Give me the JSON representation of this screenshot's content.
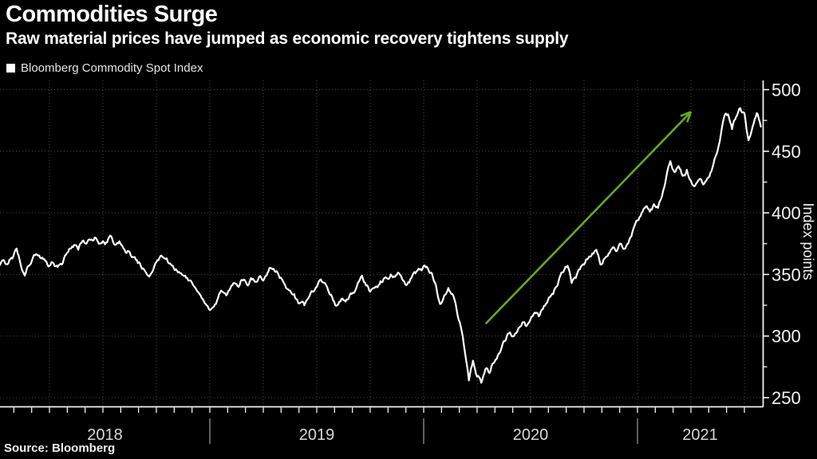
{
  "source": {
    "label": "Source: Bloomberg"
  },
  "colors": {
    "background": "#000000",
    "line": "#ffffff",
    "arrow": "#64ab1f",
    "grid": "#4b4b4b",
    "axis": "#f2f2f2",
    "tick_label": "#f5f5f5",
    "year_label": "#d8d8d8",
    "year_separator": "#9c9c9c"
  },
  "chart_data": {
    "type": "line",
    "title": "Commodities Surge",
    "subtitle": "Raw material prices have jumped as economic recovery tightens supply",
    "ylabel": "Index points",
    "y_ticks": [
      250,
      300,
      350,
      400,
      450,
      500
    ],
    "y_minor_ticks": [
      275,
      325,
      375,
      425,
      475
    ],
    "ylim": [
      243,
      507
    ],
    "x_years": [
      2018,
      2019,
      2020,
      2021
    ],
    "x_year_separators": [
      2019,
      2020,
      2021
    ],
    "x_end_year": 2021.58,
    "grid": "dotted",
    "legend_position": "top-left",
    "series": [
      {
        "name": "Bloomberg Commodity Spot Index",
        "color": "#ffffff",
        "start_year": 2018,
        "points_per_year": 52,
        "values": [
          357,
          358,
          361,
          359,
          363,
          371,
          358,
          349,
          357,
          364,
          366,
          363,
          361,
          357,
          359,
          356,
          358,
          366,
          371,
          374,
          370,
          377,
          375,
          378,
          380,
          375,
          377,
          376,
          381,
          374,
          377,
          371,
          369,
          364,
          362,
          359,
          354,
          349,
          352,
          360,
          365,
          363,
          359,
          357,
          353,
          351,
          349,
          345,
          341,
          336,
          331,
          326,
          321,
          324,
          331,
          336,
          333,
          339,
          343,
          340,
          345,
          342,
          347,
          344,
          348,
          345,
          351,
          355,
          352,
          347,
          343,
          338,
          334,
          330,
          327,
          325,
          331,
          336,
          340,
          346,
          343,
          335,
          329,
          325,
          330,
          328,
          333,
          335,
          343,
          349,
          341,
          336,
          339,
          341,
          344,
          347,
          350,
          348,
          351,
          345,
          342,
          347,
          351,
          354,
          357,
          355,
          351,
          341,
          326,
          333,
          339,
          334,
          322,
          308,
          288,
          264,
          280,
          267,
          262,
          273,
          270,
          278,
          284,
          291,
          297,
          303,
          300,
          306,
          311,
          308,
          314,
          319,
          316,
          322,
          327,
          333,
          339,
          347,
          352,
          357,
          343,
          347,
          354,
          358,
          363,
          367,
          370,
          358,
          363,
          367,
          372,
          369,
          375,
          371,
          378,
          387,
          394,
          400,
          405,
          401,
          407,
          404,
          414,
          429,
          442,
          433,
          438,
          430,
          435,
          426,
          422,
          427,
          423,
          428,
          434,
          446,
          458,
          477,
          480,
          468,
          478,
          485,
          481,
          459,
          470,
          481,
          470
        ]
      }
    ],
    "annotation": {
      "type": "arrow",
      "color": "#64ab1f",
      "from": {
        "year": 2020.29,
        "value": 310
      },
      "to": {
        "year": 2021.25,
        "value": 482
      }
    }
  }
}
